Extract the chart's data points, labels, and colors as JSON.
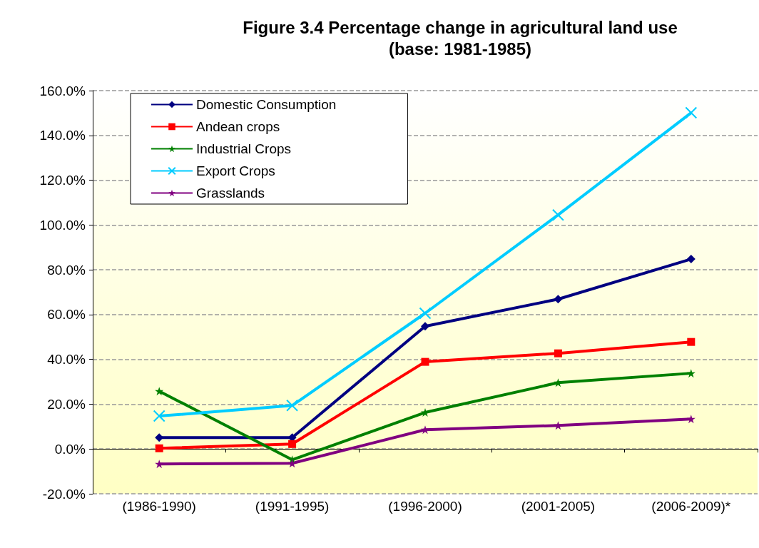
{
  "chart_data": {
    "type": "line",
    "title": "Figure 3.4 Percentage change in agricultural land use\n(base: 1981-1985)",
    "categories": [
      "(1986-1990)",
      "(1991-1995)",
      "(1996-2000)",
      "(2001-2005)",
      "(2006-2009)*"
    ],
    "series": [
      {
        "name": "Domestic Consumption",
        "color": "#000080",
        "marker": "diamond",
        "values": [
          5.1,
          5.1,
          54.8,
          66.9,
          84.8
        ]
      },
      {
        "name": "Andean crops",
        "color": "#ff0000",
        "marker": "square",
        "values": [
          0.3,
          2.2,
          38.9,
          42.7,
          47.8
        ]
      },
      {
        "name": "Industrial Crops",
        "color": "#008000",
        "marker": "star",
        "values": [
          25.8,
          -4.8,
          16.3,
          29.6,
          33.8
        ]
      },
      {
        "name": "Export Crops",
        "color": "#00ccff",
        "marker": "cross",
        "values": [
          14.7,
          19.4,
          60.6,
          104.5,
          150.1
        ]
      },
      {
        "name": "Grasslands",
        "color": "#800080",
        "marker": "star",
        "values": [
          -6.7,
          -6.4,
          8.6,
          10.5,
          13.4
        ]
      }
    ],
    "ylim": [
      -20,
      160
    ],
    "yticks": [
      {
        "value": -20,
        "label": "-20.0%"
      },
      {
        "value": 0,
        "label": "0.0%"
      },
      {
        "value": 20,
        "label": "20.0%"
      },
      {
        "value": 40,
        "label": "40.0%"
      },
      {
        "value": 60,
        "label": "60.0%"
      },
      {
        "value": 80,
        "label": "80.0%"
      },
      {
        "value": 100,
        "label": "100.0%"
      },
      {
        "value": 120,
        "label": "120.0%"
      },
      {
        "value": 140,
        "label": "140.0%"
      },
      {
        "value": 160,
        "label": "160.0%"
      }
    ],
    "grid": "y",
    "legend": "top left",
    "line_style": "solid"
  }
}
